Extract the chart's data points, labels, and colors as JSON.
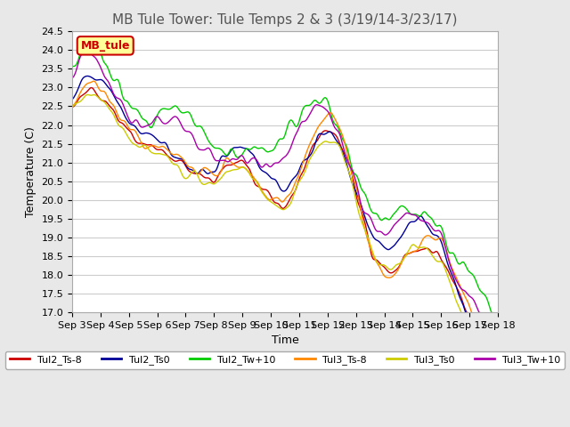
{
  "title": "MB Tule Tower: Tule Temps 2 & 3 (3/19/14-3/23/17)",
  "xlabel": "Time",
  "ylabel": "Temperature (C)",
  "ylim": [
    17.0,
    24.5
  ],
  "yticks": [
    17.0,
    17.5,
    18.0,
    18.5,
    19.0,
    19.5,
    20.0,
    20.5,
    21.0,
    21.5,
    22.0,
    22.5,
    23.0,
    23.5,
    24.0,
    24.5
  ],
  "xtick_labels": [
    "Sep 3",
    "Sep 4",
    "Sep 5",
    "Sep 6",
    "Sep 7",
    "Sep 8",
    "Sep 9",
    "Sep 10",
    "Sep 11",
    "Sep 12",
    "Sep 13",
    "Sep 14",
    "Sep 15",
    "Sep 16",
    "Sep 17",
    "Sep 18"
  ],
  "n_points": 480,
  "series_colors": {
    "Tul2_Ts-8": "#cc0000",
    "Tul2_Ts0": "#000099",
    "Tul2_Tw+10": "#00cc00",
    "Tul3_Ts-8": "#ff8800",
    "Tul3_Ts0": "#cccc00",
    "Tul3_Tw+10": "#aa00aa"
  },
  "linewidth": 1.0,
  "background_color": "#e8e8e8",
  "plot_bg_color": "#ffffff",
  "grid_color": "#cccccc",
  "legend_box_color": "#ffff99",
  "legend_box_edge": "#cc0000",
  "legend_label": "MB_tule",
  "title_fontsize": 11,
  "axis_fontsize": 9,
  "tick_fontsize": 8
}
